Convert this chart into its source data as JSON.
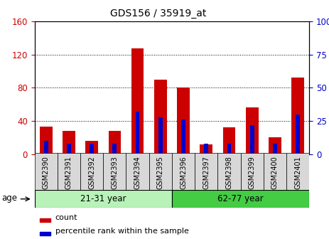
{
  "title": "GDS156 / 35919_at",
  "samples": [
    "GSM2390",
    "GSM2391",
    "GSM2392",
    "GSM2393",
    "GSM2394",
    "GSM2395",
    "GSM2396",
    "GSM2397",
    "GSM2398",
    "GSM2399",
    "GSM2400",
    "GSM2401"
  ],
  "count_values": [
    33,
    28,
    16,
    28,
    128,
    90,
    80,
    12,
    32,
    56,
    20,
    92
  ],
  "percentile_values": [
    10,
    8,
    8,
    8,
    32,
    28,
    26,
    8,
    8,
    22,
    8,
    30
  ],
  "groups": [
    {
      "label": "21-31 year",
      "start": 0,
      "end": 6
    },
    {
      "label": "62-77 year",
      "start": 6,
      "end": 12
    }
  ],
  "ylim_left": [
    0,
    160
  ],
  "ylim_right": [
    0,
    100
  ],
  "yticks_left": [
    0,
    40,
    80,
    120,
    160
  ],
  "yticks_right": [
    0,
    25,
    50,
    75,
    100
  ],
  "bar_color_count": "#cc0000",
  "bar_color_percentile": "#0000cc",
  "count_bar_width": 0.55,
  "pct_bar_width": 0.18,
  "age_label": "age",
  "legend_count": "count",
  "legend_percentile": "percentile rank within the sample",
  "left_axis_color": "#cc0000",
  "right_axis_color": "#0000cc",
  "group_color_1": "#b8f2b8",
  "group_color_2": "#44cc44",
  "xtick_bg": "#d8d8d8"
}
